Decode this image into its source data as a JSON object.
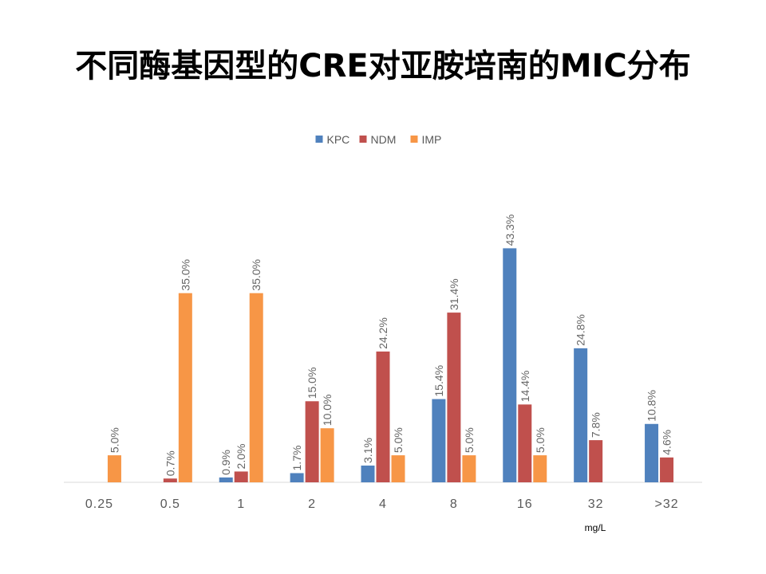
{
  "title": "不同酶基因型的CRE对亚胺培南的MIC分布",
  "chart_data": {
    "type": "bar",
    "title": "不同酶基因型的CRE对亚胺培南的MIC分布",
    "categories": [
      "0.25",
      "0.5",
      "1",
      "2",
      "4",
      "8",
      "16",
      "32",
      ">32"
    ],
    "xlabel": "mg/L",
    "ylabel": "",
    "ylim": [
      0,
      50
    ],
    "grid": false,
    "legend": "top",
    "series": [
      {
        "name": "KPC",
        "color": "#4F81BD",
        "values": [
          null,
          null,
          0.9,
          1.7,
          3.1,
          15.4,
          43.3,
          24.8,
          10.8
        ],
        "labels": [
          "",
          "",
          "0.9%",
          "1.7%",
          "3.1%",
          "15.4%",
          "43.3%",
          "24.8%",
          "10.8%"
        ]
      },
      {
        "name": "NDM",
        "color": "#C0504D",
        "values": [
          null,
          0.7,
          2.0,
          15.0,
          24.2,
          31.4,
          14.4,
          7.8,
          4.6
        ],
        "labels": [
          "",
          "0.7%",
          "2.0%",
          "15.0%",
          "24.2%",
          "31.4%",
          "14.4%",
          "7.8%",
          "4.6%"
        ]
      },
      {
        "name": "IMP",
        "color": "#F79646",
        "values": [
          5.0,
          35.0,
          35.0,
          10.0,
          5.0,
          5.0,
          5.0,
          null,
          null
        ],
        "labels": [
          "5.0%",
          "35.0%",
          "35.0%",
          "10.0%",
          "5.0%",
          "5.0%",
          "5.0%",
          "",
          ""
        ]
      }
    ]
  }
}
